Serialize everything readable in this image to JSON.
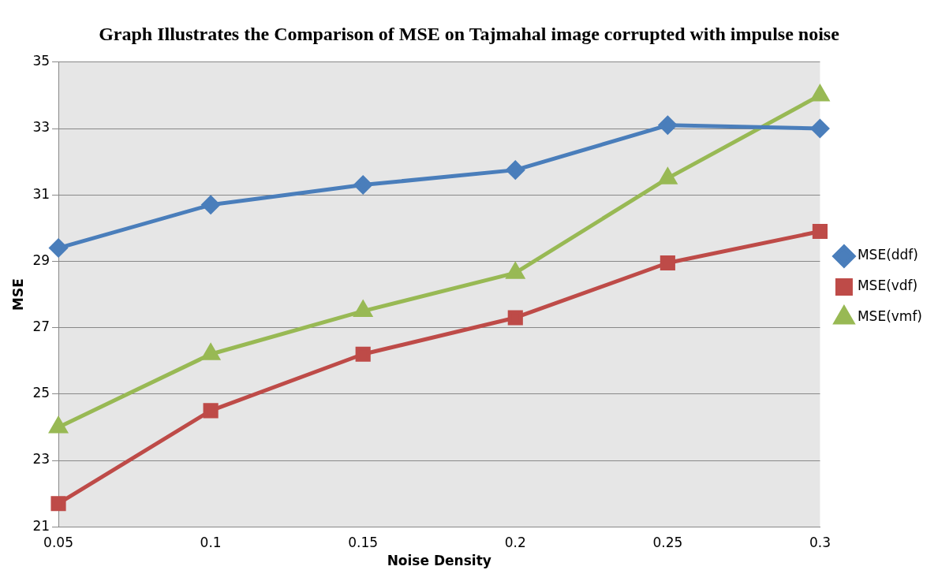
{
  "chart_data": {
    "type": "line",
    "title": "Graph Illustrates the Comparison of MSE on Tajmahal image corrupted with impulse noise",
    "xlabel": "Noise Density",
    "ylabel": "MSE",
    "categories": [
      "0.05",
      "0.1",
      "0.15",
      "0.2",
      "0.25",
      "0.3"
    ],
    "series": [
      {
        "name": "MSE(ddf)",
        "color": "#4a7ebb",
        "marker": "diamond",
        "values": [
          29.4,
          30.7,
          31.3,
          31.75,
          33.1,
          33.0
        ]
      },
      {
        "name": "MSE(vdf)",
        "color": "#be4b48",
        "marker": "square",
        "values": [
          21.7,
          24.5,
          26.2,
          27.3,
          28.95,
          29.9
        ]
      },
      {
        "name": "MSE(vmf)",
        "color": "#98b954",
        "marker": "triangle",
        "values": [
          24.0,
          26.2,
          27.5,
          28.65,
          31.5,
          34.0
        ]
      }
    ],
    "ylim": [
      21,
      35
    ],
    "yticks": [
      21,
      23,
      25,
      27,
      29,
      31,
      33,
      35
    ],
    "grid": "y",
    "legend": "right",
    "line_style": "solid"
  }
}
